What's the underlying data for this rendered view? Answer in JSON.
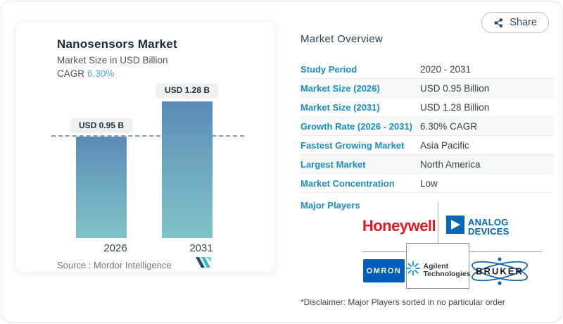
{
  "share": {
    "label": "Share"
  },
  "chart_card": {
    "title": "Nanosensors Market",
    "subtitle": "Market Size in USD Billion",
    "cagr_label": "CAGR",
    "cagr_value": "6.30%",
    "source_label": "Source :",
    "source_value": "Mordor Intelligence"
  },
  "chart_data": {
    "type": "bar",
    "title": "Nanosensors Market",
    "ylabel": "Market Size in USD Billion",
    "categories": [
      "2026",
      "2031"
    ],
    "values": [
      0.95,
      1.28
    ],
    "bar_labels": [
      "USD 0.95 B",
      "USD 1.28 B"
    ],
    "unit": "USD Billion",
    "cagr": "6.30%",
    "ylim": [
      0,
      1.45
    ],
    "grid": false,
    "reference_line": {
      "y": 0.95,
      "style": "dashed"
    },
    "bar_color_top": "#5a8bb7",
    "bar_color_bottom": "#80c2c9"
  },
  "overview": {
    "heading": "Market Overview",
    "rows": [
      {
        "label": "Study Period",
        "value": "2020 - 2031"
      },
      {
        "label": "Market Size (2026)",
        "value": "USD 0.95 Billion"
      },
      {
        "label": "Market Size (2031)",
        "value": "USD 1.28 Billion"
      },
      {
        "label": "Growth Rate (2026 - 2031)",
        "value": "6.30% CAGR"
      },
      {
        "label": "Fastest Growing Market",
        "value": "Asia Pacific"
      },
      {
        "label": "Largest Market",
        "value": "North America"
      },
      {
        "label": "Market Concentration",
        "value": "Low"
      }
    ]
  },
  "major_players": {
    "label": "Major Players",
    "honeywell": "Honeywell",
    "adi_line1": "ANALOG",
    "adi_line2": "DEVICES",
    "omron": "OMRON",
    "agilent_line1": "Agilent",
    "agilent_line2": "Technologies",
    "bruker": "BRUKER",
    "disclaimer": "*Disclaimer: Major Players sorted in no particular order"
  },
  "colors": {
    "accent_blue": "#1b8dc6",
    "cagr_blue": "#55a4d4",
    "bar_top": "#5a8bb7",
    "bar_bottom": "#80c2c9",
    "honeywell_red": "#e01b22",
    "adi_blue": "#0067b9",
    "omron_blue": "#005eb8",
    "agilent_blue": "#0096d6",
    "bruker_blue": "#1767b0"
  }
}
